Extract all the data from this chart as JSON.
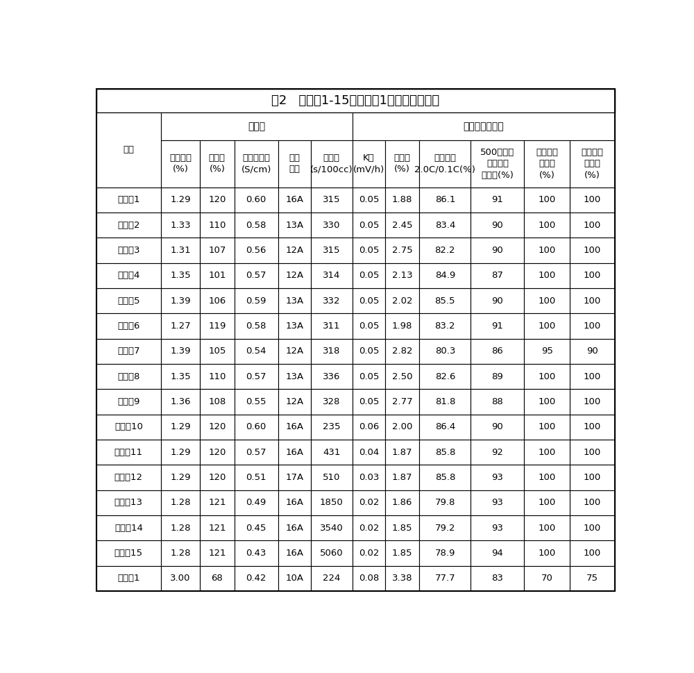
{
  "title": "表2   实施例1-15和对比例1的性能测试结果",
  "separator_group": "隔离膜",
  "battery_group": "锂离子二次电池",
  "group_label": "组别",
  "sub_headers": [
    "热收缩率\n(%)",
    "保液率\n(%)",
    "离子电导率\n(S/cm)",
    "蜡棒\n级号",
    "透气度\n(s/100cc)",
    "K值\n(mV/h)",
    "变形率\n(%)",
    "倍率性能\n2.0C/0.1C(%)",
    "500次循环\n后的容量\n保持率(%)",
    "针刺测试\n通过率\n(%)",
    "挤压测试\n通过率\n(%)"
  ],
  "rows": [
    [
      "实施例1",
      "1.29",
      "120",
      "0.60",
      "16A",
      "315",
      "0.05",
      "1.88",
      "86.1",
      "91",
      "100",
      "100"
    ],
    [
      "实施例2",
      "1.33",
      "110",
      "0.58",
      "13A",
      "330",
      "0.05",
      "2.45",
      "83.4",
      "90",
      "100",
      "100"
    ],
    [
      "实施例3",
      "1.31",
      "107",
      "0.56",
      "12A",
      "315",
      "0.05",
      "2.75",
      "82.2",
      "90",
      "100",
      "100"
    ],
    [
      "实施例4",
      "1.35",
      "101",
      "0.57",
      "12A",
      "314",
      "0.05",
      "2.13",
      "84.9",
      "87",
      "100",
      "100"
    ],
    [
      "实施例5",
      "1.39",
      "106",
      "0.59",
      "13A",
      "332",
      "0.05",
      "2.02",
      "85.5",
      "90",
      "100",
      "100"
    ],
    [
      "实施例6",
      "1.27",
      "119",
      "0.58",
      "13A",
      "311",
      "0.05",
      "1.98",
      "83.2",
      "91",
      "100",
      "100"
    ],
    [
      "实施例7",
      "1.39",
      "105",
      "0.54",
      "12A",
      "318",
      "0.05",
      "2.82",
      "80.3",
      "86",
      "95",
      "90"
    ],
    [
      "实施例8",
      "1.35",
      "110",
      "0.57",
      "13A",
      "336",
      "0.05",
      "2.50",
      "82.6",
      "89",
      "100",
      "100"
    ],
    [
      "实施例9",
      "1.36",
      "108",
      "0.55",
      "12A",
      "328",
      "0.05",
      "2.77",
      "81.8",
      "88",
      "100",
      "100"
    ],
    [
      "实施例10",
      "1.29",
      "120",
      "0.60",
      "16A",
      "235",
      "0.06",
      "2.00",
      "86.4",
      "90",
      "100",
      "100"
    ],
    [
      "实施例11",
      "1.29",
      "120",
      "0.57",
      "16A",
      "431",
      "0.04",
      "1.87",
      "85.8",
      "92",
      "100",
      "100"
    ],
    [
      "实施例12",
      "1.29",
      "120",
      "0.51",
      "17A",
      "510",
      "0.03",
      "1.87",
      "85.8",
      "93",
      "100",
      "100"
    ],
    [
      "实施例13",
      "1.28",
      "121",
      "0.49",
      "16A",
      "1850",
      "0.02",
      "1.86",
      "79.8",
      "93",
      "100",
      "100"
    ],
    [
      "实施例14",
      "1.28",
      "121",
      "0.45",
      "16A",
      "3540",
      "0.02",
      "1.85",
      "79.2",
      "93",
      "100",
      "100"
    ],
    [
      "实施例15",
      "1.28",
      "121",
      "0.43",
      "16A",
      "5060",
      "0.02",
      "1.85",
      "78.9",
      "94",
      "100",
      "100"
    ],
    [
      "对比例1",
      "3.00",
      "68",
      "0.42",
      "10A",
      "224",
      "0.08",
      "3.38",
      "77.7",
      "83",
      "70",
      "75"
    ]
  ],
  "bg_color": "#ffffff",
  "text_color": "#000000",
  "col_widths_rel": [
    1.35,
    0.82,
    0.72,
    0.92,
    0.68,
    0.88,
    0.68,
    0.72,
    1.08,
    1.12,
    0.95,
    0.95
  ],
  "title_fontsize": 13,
  "header_fontsize": 9.5,
  "cell_fontsize": 9.5
}
